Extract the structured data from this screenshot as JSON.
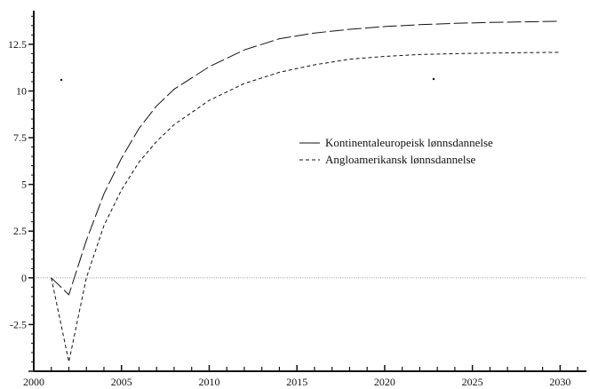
{
  "chart_data": {
    "type": "line",
    "xlim": [
      2000,
      2031.5
    ],
    "ylim": [
      -5,
      14.3
    ],
    "x_ticks": [
      2000,
      2005,
      2010,
      2015,
      2020,
      2025,
      2030
    ],
    "x_tick_labels": [
      "2000",
      "2005",
      "2010",
      "2015",
      "2020",
      "2025",
      "2030"
    ],
    "y_ticks": [
      -2.5,
      0,
      2.5,
      5,
      7.5,
      10,
      12.5
    ],
    "y_tick_labels": [
      "-2.5",
      "0",
      "2.5",
      "5",
      "7.5",
      "10",
      "12.5"
    ],
    "grid": false,
    "zero_line": true,
    "legend_position": "right",
    "series": [
      {
        "name": "Kontinentaleuropeisk lønnsdannelse",
        "style": "long-dash",
        "color": "#111111",
        "x": [
          2001,
          2002,
          2003,
          2004,
          2005,
          2006,
          2007,
          2008,
          2010,
          2012,
          2014,
          2016,
          2018,
          2020,
          2022,
          2024,
          2026,
          2028,
          2030
        ],
        "y": [
          0,
          -0.9,
          2.0,
          4.5,
          6.4,
          8.0,
          9.2,
          10.1,
          11.3,
          12.2,
          12.8,
          13.1,
          13.3,
          13.45,
          13.55,
          13.62,
          13.67,
          13.7,
          13.73
        ]
      },
      {
        "name": "Angloamerikansk lønnsdannelse",
        "style": "short-dash",
        "color": "#111111",
        "x": [
          2001,
          2002,
          2003,
          2004,
          2005,
          2006,
          2007,
          2008,
          2010,
          2012,
          2014,
          2016,
          2018,
          2020,
          2022,
          2024,
          2026,
          2028,
          2030
        ],
        "y": [
          0,
          -4.5,
          0,
          2.8,
          4.7,
          6.2,
          7.3,
          8.2,
          9.5,
          10.4,
          11.0,
          11.4,
          11.7,
          11.85,
          11.95,
          12.0,
          12.03,
          12.05,
          12.07
        ]
      }
    ]
  }
}
